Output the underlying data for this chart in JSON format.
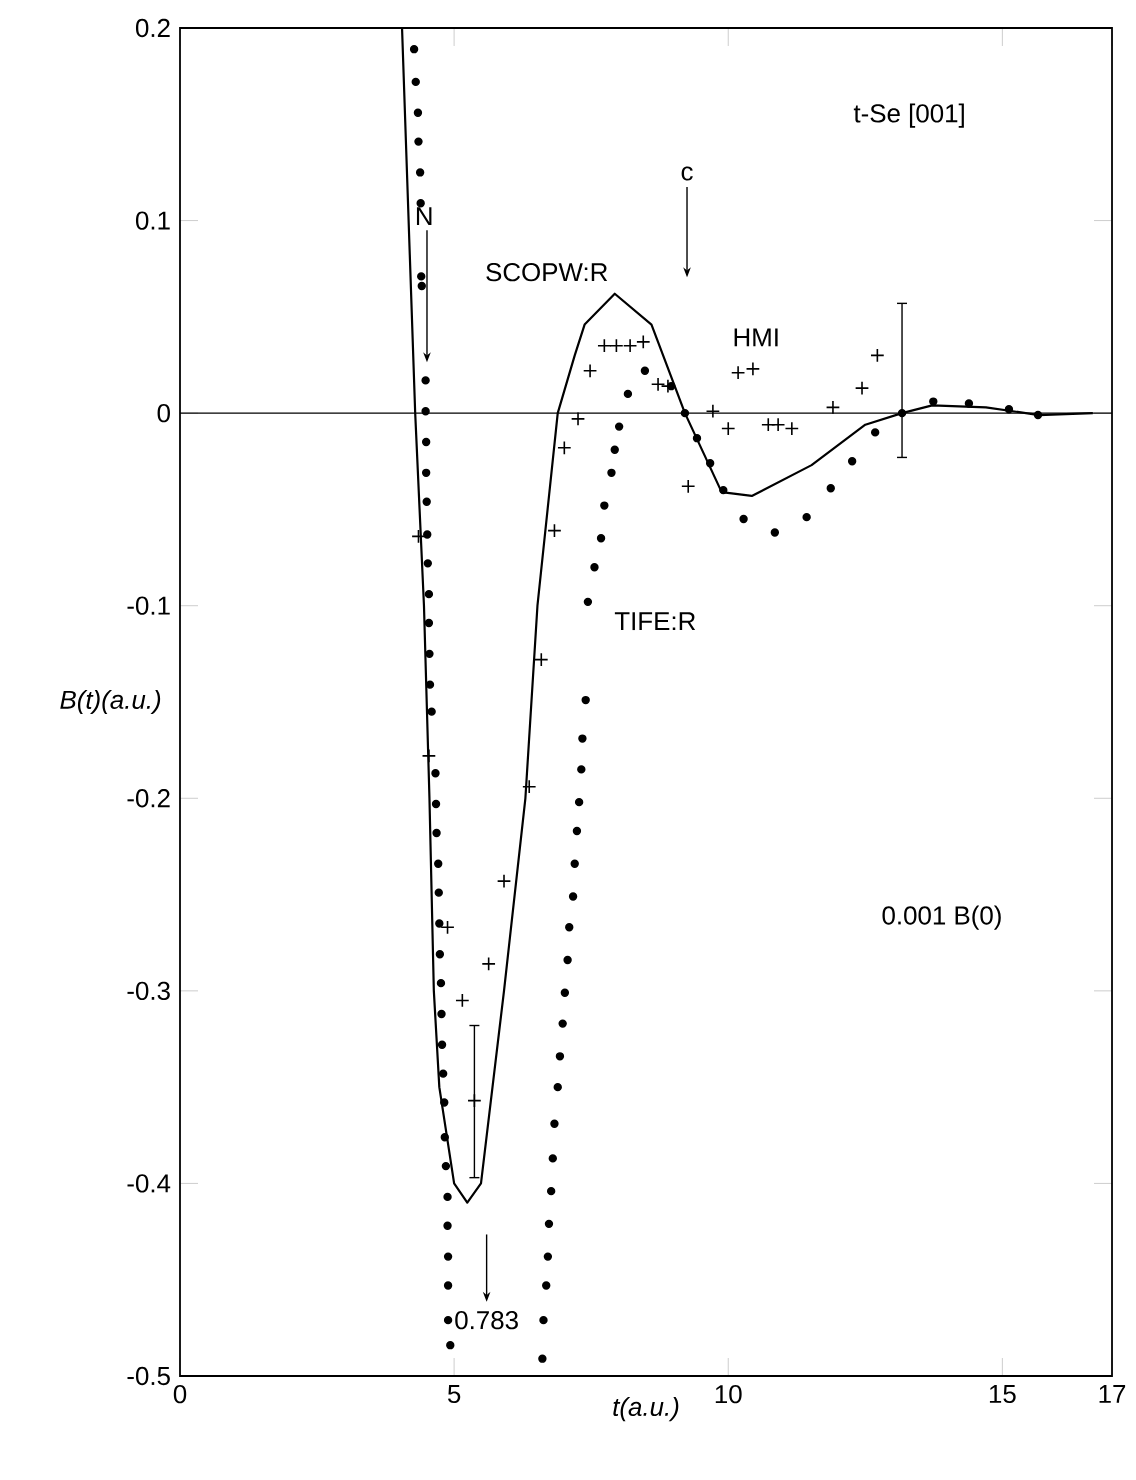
{
  "chart_data": {
    "type": "scatter",
    "title": "t-Se [001]",
    "xlabel": "t(a.u.)",
    "ylabel": "B(t)(a.u.)",
    "xlim": [
      0,
      17
    ],
    "ylim": [
      -0.5,
      0.2
    ],
    "xticks": [
      0,
      5,
      10,
      15,
      17
    ],
    "yticks": [
      -0.5,
      -0.4,
      -0.3,
      -0.2,
      -0.1,
      0,
      0.1,
      0.2
    ],
    "legend": false,
    "grid": false,
    "ref_lines": [
      {
        "axis": "y",
        "value": 0,
        "color": "#000000",
        "line_style": "solid"
      }
    ],
    "annotations": [
      "N",
      "c",
      "0.783",
      "0.001 B(0)"
    ],
    "series": [
      {
        "name": "SCOPW:R",
        "type": "line",
        "color": "#000000",
        "marker": "none",
        "line_style": "solid",
        "x": [
          4.05,
          4.29,
          4.45,
          4.55,
          4.63,
          4.73,
          5.0,
          5.24,
          5.49,
          5.91,
          6.3,
          6.52,
          6.89,
          7.2,
          7.38,
          7.93,
          8.6,
          9.21,
          9.88,
          10.43,
          11.52,
          12.5,
          13.17,
          13.72,
          14.7,
          15.67,
          16.65
        ],
        "values": [
          0.2,
          0,
          -0.1,
          -0.2,
          -0.3,
          -0.35,
          -0.4,
          -0.41,
          -0.4,
          -0.3,
          -0.2,
          -0.1,
          0,
          0.03,
          0.046,
          0.062,
          0.046,
          0,
          -0.041,
          -0.043,
          -0.027,
          -0.006,
          0,
          0.004,
          0.003,
          -0.001,
          0
        ]
      },
      {
        "name": "TIFE:R",
        "color": "#000000",
        "marker": "circle",
        "x": [
          4.27,
          4.3,
          4.34,
          4.35,
          4.38,
          4.39,
          4.4,
          4.41,
          4.48,
          4.48,
          4.49,
          4.49,
          4.5,
          4.51,
          4.52,
          4.54,
          4.54,
          4.55,
          4.56,
          4.59,
          4.66,
          4.67,
          4.68,
          4.71,
          4.72,
          4.73,
          4.74,
          4.76,
          4.77,
          4.78,
          4.8,
          4.82,
          4.83,
          4.85,
          4.88,
          4.88,
          4.89,
          4.89,
          4.89,
          4.93,
          6.61,
          6.63,
          6.68,
          6.71,
          6.73,
          6.77,
          6.8,
          6.83,
          6.89,
          6.93,
          6.98,
          7.02,
          7.07,
          7.1,
          7.17,
          7.2,
          7.24,
          7.28,
          7.32,
          7.34,
          7.4,
          7.44,
          7.56,
          7.68,
          7.74,
          7.87,
          7.93,
          8.01,
          8.17,
          8.48,
          8.96,
          9.21,
          9.43,
          9.67,
          9.91,
          10.28,
          10.85,
          11.43,
          11.87,
          12.26,
          12.68,
          13.17,
          13.74,
          14.39,
          15.12,
          15.65
        ],
        "values": [
          0.189,
          0.172,
          0.156,
          0.141,
          0.125,
          0.109,
          0.071,
          0.066,
          0.017,
          0.001,
          -0.015,
          -0.031,
          -0.046,
          -0.063,
          -0.078,
          -0.094,
          -0.109,
          -0.125,
          -0.141,
          -0.155,
          -0.187,
          -0.203,
          -0.218,
          -0.234,
          -0.249,
          -0.265,
          -0.281,
          -0.296,
          -0.312,
          -0.328,
          -0.343,
          -0.358,
          -0.376,
          -0.391,
          -0.407,
          -0.422,
          -0.438,
          -0.453,
          -0.471,
          -0.484,
          -0.491,
          -0.471,
          -0.453,
          -0.438,
          -0.421,
          -0.404,
          -0.387,
          -0.369,
          -0.35,
          -0.334,
          -0.317,
          -0.301,
          -0.284,
          -0.267,
          -0.251,
          -0.234,
          -0.217,
          -0.202,
          -0.185,
          -0.169,
          -0.149,
          -0.098,
          -0.08,
          -0.065,
          -0.048,
          -0.031,
          -0.019,
          -0.007,
          0.01,
          0.022,
          0.014,
          0,
          -0.013,
          -0.026,
          -0.04,
          -0.055,
          -0.062,
          -0.054,
          -0.039,
          -0.025,
          -0.01,
          0,
          0.006,
          0.005,
          0.002,
          -0.001
        ],
        "errors": [
          null,
          null,
          null,
          null,
          null,
          null,
          null,
          null,
          null,
          null,
          null,
          null,
          null,
          null,
          null,
          null,
          null,
          null,
          null,
          null,
          null,
          null,
          null,
          null,
          null,
          null,
          null,
          null,
          null,
          null,
          null,
          null,
          null,
          null,
          null,
          null,
          null,
          null,
          null,
          null,
          null,
          null,
          null,
          null,
          null,
          null,
          null,
          null,
          null,
          null,
          null,
          null,
          null,
          null,
          null,
          null,
          null,
          null,
          null,
          null,
          null,
          null,
          null,
          null,
          null,
          null,
          null,
          null,
          null,
          null,
          null,
          null,
          null,
          null,
          null,
          null,
          null,
          null,
          null,
          null,
          null,
          [
            -0.023,
            0.057
          ],
          null,
          null,
          null,
          null
        ]
      },
      {
        "name": "HMI",
        "color": "#000000",
        "marker": "cross",
        "x": [
          4.35,
          4.54,
          4.88,
          5.15,
          5.37,
          5.63,
          5.91,
          6.37,
          6.59,
          6.83,
          7.01,
          7.26,
          7.48,
          7.74,
          7.96,
          8.21,
          8.45,
          8.72,
          8.9,
          9.27,
          9.72,
          10.0,
          10.18,
          10.45,
          10.73,
          10.91,
          11.16,
          11.91,
          12.44,
          12.72
        ],
        "values": [
          -0.064,
          -0.178,
          -0.267,
          -0.305,
          -0.357,
          -0.286,
          -0.243,
          -0.194,
          -0.128,
          -0.061,
          -0.018,
          -0.003,
          0.022,
          0.035,
          0.035,
          0.035,
          0.037,
          0.015,
          0.014,
          -0.038,
          0.001,
          -0.008,
          0.021,
          0.023,
          -0.006,
          -0.006,
          -0.008,
          0.003,
          0.013,
          0.03
        ],
        "errors": [
          null,
          null,
          null,
          null,
          [
            -0.397,
            -0.318
          ],
          null,
          null,
          null,
          null,
          null,
          null,
          null,
          null,
          null,
          null,
          null,
          null,
          null,
          null,
          null,
          null,
          null,
          null,
          null,
          null,
          null,
          null,
          null,
          null,
          null
        ]
      }
    ]
  }
}
